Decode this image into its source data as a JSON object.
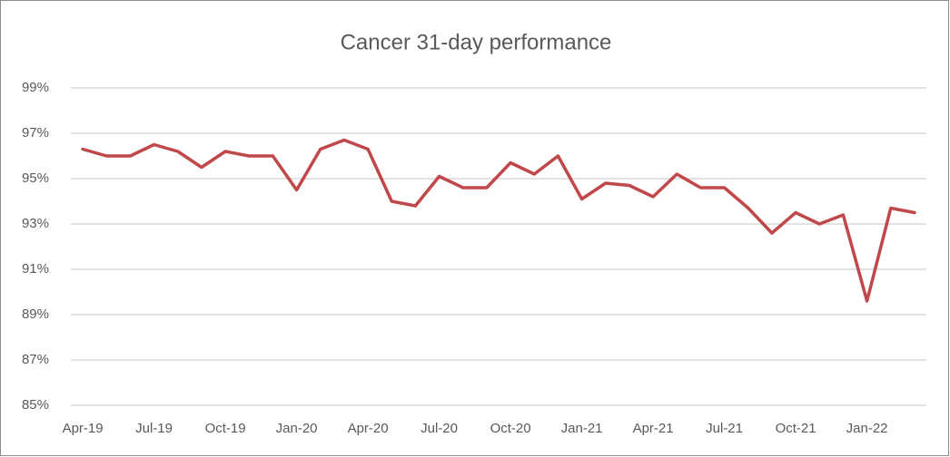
{
  "chart_data": {
    "type": "line",
    "title": "Cancer 31-day performance",
    "categories": [
      "Apr-19",
      null,
      null,
      "Jul-19",
      null,
      null,
      "Oct-19",
      null,
      null,
      "Jan-20",
      null,
      null,
      "Apr-20",
      null,
      null,
      "Jul-20",
      null,
      null,
      "Oct-20",
      null,
      null,
      "Jan-21",
      null,
      null,
      "Apr-21",
      null,
      null,
      "Jul-21",
      null,
      null,
      "Oct-21",
      null,
      null,
      "Jan-22",
      null,
      null
    ],
    "series": [
      {
        "name": "Cancer 31-day performance",
        "color": "#c0474a",
        "values": [
          96.3,
          96.0,
          96.0,
          96.5,
          96.2,
          95.5,
          96.2,
          96.0,
          96.0,
          94.5,
          96.3,
          96.7,
          96.3,
          94.0,
          93.8,
          95.1,
          94.6,
          94.6,
          95.7,
          95.2,
          96.0,
          94.1,
          94.8,
          94.7,
          94.2,
          95.2,
          94.6,
          94.6,
          93.7,
          92.6,
          93.5,
          93.0,
          93.4,
          89.6,
          93.7,
          93.5
        ]
      }
    ],
    "ylim": [
      85,
      99
    ],
    "yticks": [
      {
        "value": 85,
        "label": "85%"
      },
      {
        "value": 87,
        "label": "87%"
      },
      {
        "value": 89,
        "label": "89%"
      },
      {
        "value": 91,
        "label": "91%"
      },
      {
        "value": 93,
        "label": "93%"
      },
      {
        "value": 95,
        "label": "95%"
      },
      {
        "value": 97,
        "label": "97%"
      },
      {
        "value": 99,
        "label": "99%"
      }
    ],
    "grid": true
  }
}
